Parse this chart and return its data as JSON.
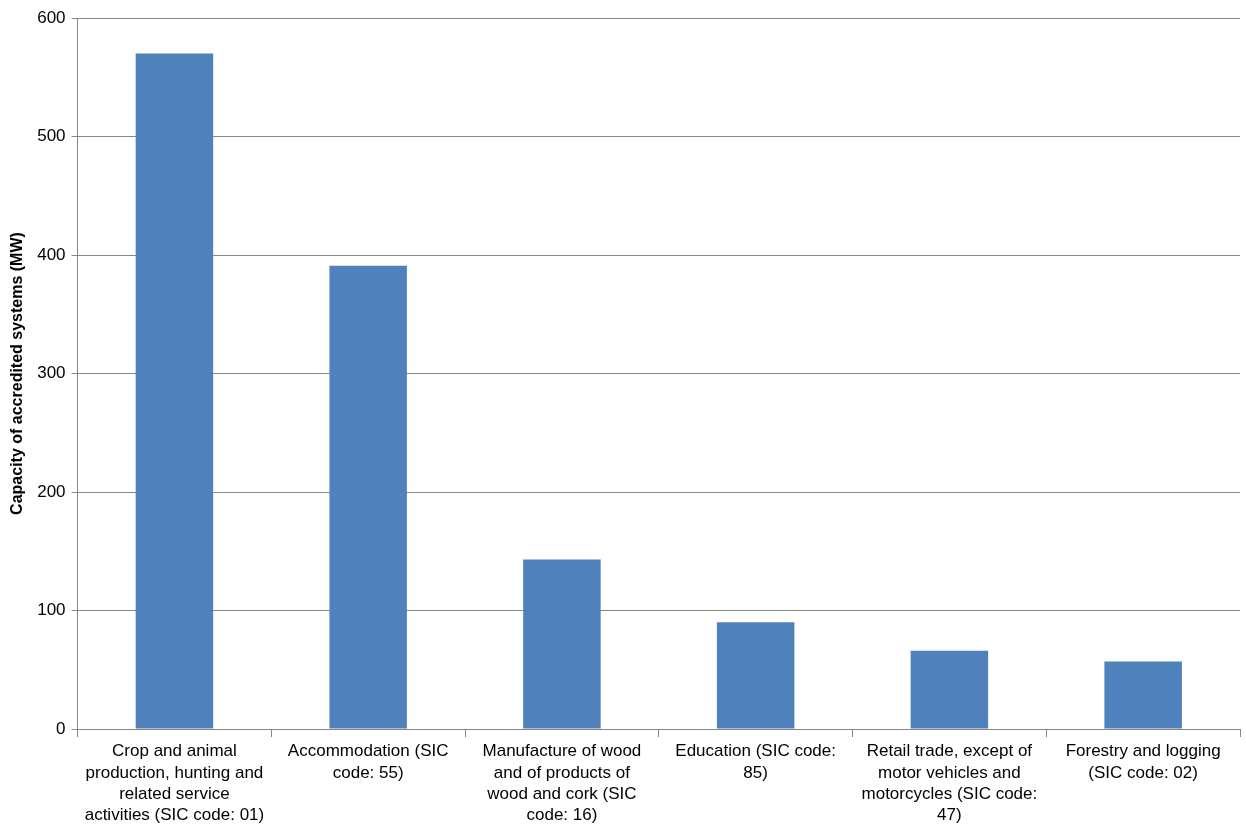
{
  "chart_data": {
    "type": "bar",
    "ylabel": "Capacity of accredited systems (MW)",
    "categories": [
      "Crop and animal production, hunting and related service activities (SIC code: 01)",
      "Accommodation (SIC code: 55)",
      "Manufacture of wood and of products of wood and cork (SIC code: 16)",
      "Education (SIC code: 85)",
      "Retail trade, except of motor vehicles and motorcycles (SIC code: 47)",
      "Forestry and logging (SIC code: 02)"
    ],
    "values": [
      570,
      391,
      143,
      90,
      66,
      57
    ],
    "color": "#4f81bd",
    "ylim": [
      0,
      600
    ],
    "yticks": [
      0,
      100,
      200,
      300,
      400,
      500,
      600
    ],
    "grid": "y",
    "legend": false
  }
}
